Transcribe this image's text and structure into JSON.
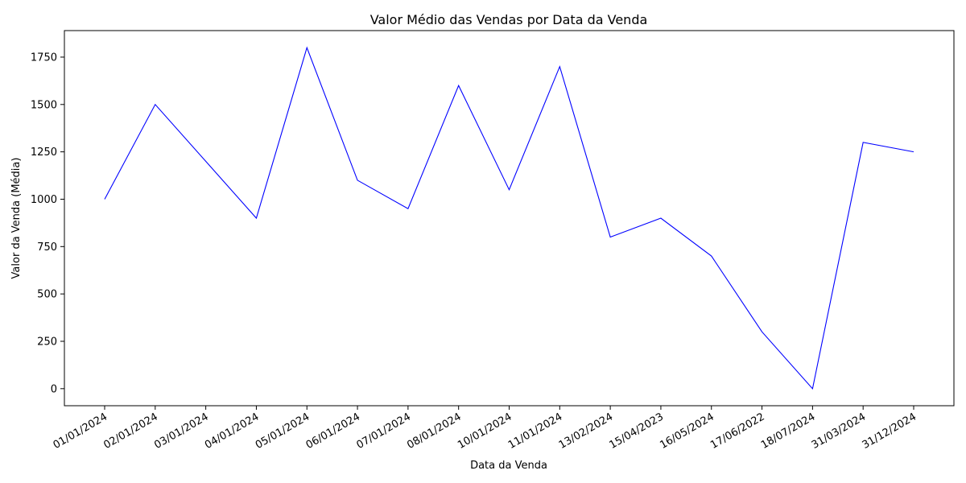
{
  "chart_data": {
    "type": "line",
    "title": "Valor Médio das Vendas por Data da Venda",
    "xlabel": "Data da Venda",
    "ylabel": "Valor da Venda (Média)",
    "categories": [
      "01/01/2024",
      "02/01/2024",
      "03/01/2024",
      "04/01/2024",
      "05/01/2024",
      "06/01/2024",
      "07/01/2024",
      "08/01/2024",
      "10/01/2024",
      "11/01/2024",
      "13/02/2024",
      "15/04/2023",
      "16/05/2024",
      "17/06/2022",
      "18/07/2024",
      "31/03/2024",
      "31/12/2024"
    ],
    "series": [
      {
        "values": [
          1000,
          1500,
          1200,
          900,
          1800,
          1100,
          950,
          1600,
          1050,
          1700,
          800,
          900,
          700,
          300,
          0,
          1300,
          1250
        ],
        "color": "#0000ff"
      }
    ],
    "ylim": [
      -90,
      1890
    ],
    "yticks": [
      0,
      250,
      500,
      750,
      1000,
      1250,
      1500,
      1750
    ],
    "grid": false,
    "legend": "none"
  }
}
